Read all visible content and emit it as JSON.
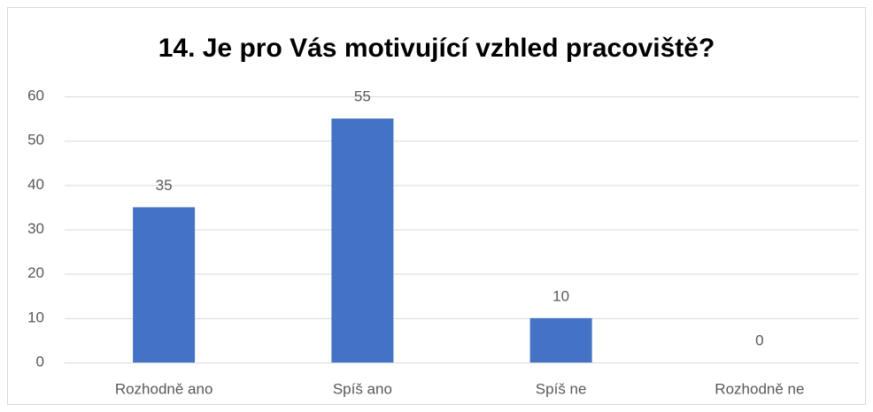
{
  "chart_data": {
    "type": "bar",
    "title": "14. Je pro Vás motivující vzhled pracoviště?",
    "categories": [
      "Rozhodně ano",
      "Spíš ano",
      "Spíš ne",
      "Rozhodně ne"
    ],
    "values": [
      35,
      55,
      10,
      0
    ],
    "color": "#4472c4",
    "ylim": [
      0,
      60
    ],
    "yticks": [
      0,
      10,
      20,
      30,
      40,
      50,
      60
    ],
    "grid": true,
    "data_labels": true
  }
}
